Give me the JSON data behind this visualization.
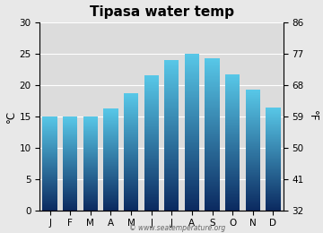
{
  "title": "Tipasa water temp",
  "months": [
    "J",
    "F",
    "M",
    "A",
    "M",
    "J",
    "J",
    "A",
    "S",
    "O",
    "N",
    "D"
  ],
  "values": [
    15.0,
    14.9,
    15.0,
    16.2,
    18.6,
    21.5,
    24.0,
    25.0,
    24.2,
    21.7,
    19.2,
    16.4
  ],
  "ylim_left": [
    0,
    30
  ],
  "yticks_left": [
    0,
    5,
    10,
    15,
    20,
    25,
    30
  ],
  "yticks_right": [
    32,
    41,
    50,
    59,
    68,
    77,
    86
  ],
  "ylabel_left": "°C",
  "ylabel_right": "°F",
  "bar_color_top": "#58c8e8",
  "bar_color_bottom": "#0b2a60",
  "background_color": "#e8e8e8",
  "plot_bg_color": "#dcdcdc",
  "grid_color": "#ffffff",
  "watermark": "© www.seatemperature.org",
  "title_fontsize": 11,
  "tick_fontsize": 7.5,
  "label_fontsize": 8.5
}
